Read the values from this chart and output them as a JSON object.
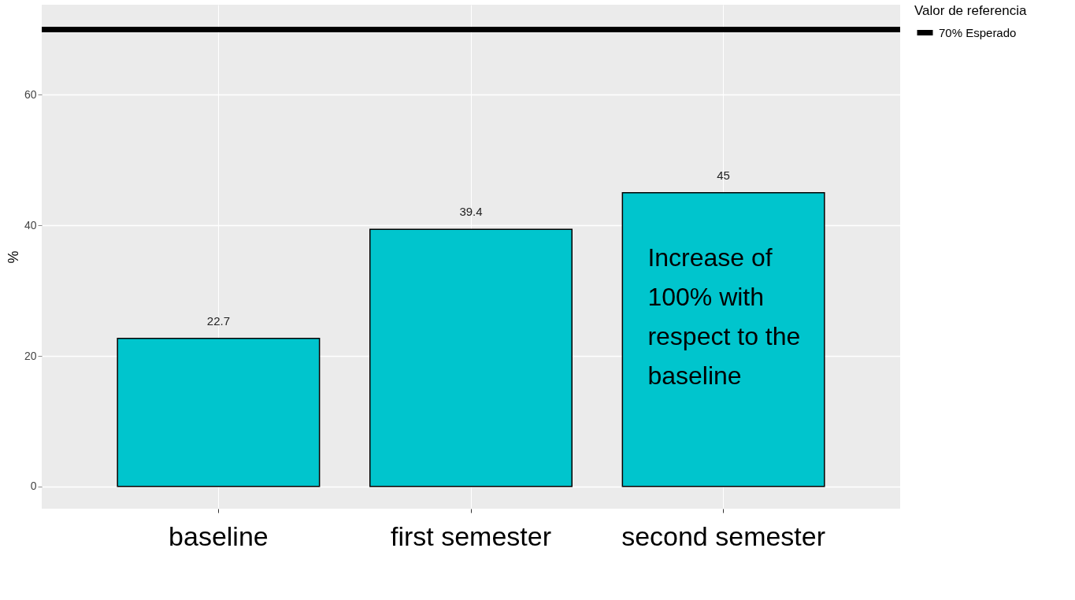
{
  "chart_data": {
    "type": "bar",
    "ylabel": "%",
    "legend_title": "Valor de referencia",
    "categories": [
      "baseline",
      "first semester",
      "second semester"
    ],
    "values": [
      22.7,
      39.4,
      45
    ],
    "color": "#00c5cd",
    "data_labels": true,
    "ylim": [
      -3.4,
      73.8
    ],
    "yticks": [
      0,
      20,
      40,
      60
    ],
    "grid": true,
    "legend": "right",
    "ref_lines": [
      {
        "axis": "y",
        "value": 70,
        "label": "70% Esperado",
        "color": "#000000"
      }
    ],
    "annotations": [
      "Increase of 100% with respect to the baseline"
    ]
  }
}
